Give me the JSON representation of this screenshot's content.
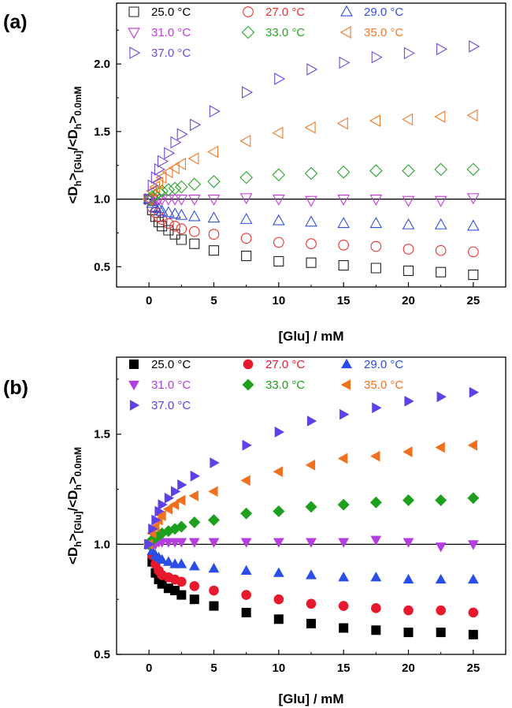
{
  "chart_data": [
    {
      "panel_label": "(a)",
      "type": "scatter",
      "marker_fill": "open",
      "xlabel": "[Glu]  /  mM",
      "ylabel": {
        "main": "<D",
        "sub1": "h",
        "mid": ">",
        "sub2": "[Glu]",
        "sep": "/<D",
        "sub3": "h",
        "end": ">",
        "sub4": "0.0mM"
      },
      "xlim": [
        -2.5,
        27.5
      ],
      "ylim": [
        0.35,
        2.45
      ],
      "xticks": [
        0,
        5,
        10,
        15,
        20,
        25
      ],
      "yticks": [
        0.5,
        1.0,
        1.5,
        2.0
      ],
      "reference_line": 1.0,
      "legend_position": "top",
      "x": [
        0,
        0.25,
        0.5,
        0.75,
        1.0,
        1.5,
        2.0,
        2.5,
        3.5,
        5.0,
        7.5,
        10.0,
        12.5,
        15.0,
        17.5,
        20.0,
        22.5,
        25.0
      ],
      "series": [
        {
          "name": "25.0 °C",
          "marker": "square",
          "color": "#222222",
          "values": [
            1.0,
            0.92,
            0.87,
            0.83,
            0.8,
            0.77,
            0.74,
            0.7,
            0.67,
            0.62,
            0.58,
            0.54,
            0.53,
            0.51,
            0.49,
            0.47,
            0.46,
            0.44
          ]
        },
        {
          "name": "27.0 °C",
          "marker": "circle",
          "color": "#e8322f",
          "values": [
            1.0,
            0.94,
            0.9,
            0.87,
            0.85,
            0.82,
            0.8,
            0.78,
            0.76,
            0.74,
            0.71,
            0.68,
            0.67,
            0.66,
            0.65,
            0.63,
            0.62,
            0.61
          ]
        },
        {
          "name": "29.0 °C",
          "marker": "triangle-up",
          "color": "#3350e0",
          "values": [
            1.0,
            0.97,
            0.94,
            0.93,
            0.91,
            0.9,
            0.89,
            0.88,
            0.87,
            0.86,
            0.85,
            0.84,
            0.83,
            0.82,
            0.82,
            0.81,
            0.81,
            0.8
          ]
        },
        {
          "name": "31.0 °C",
          "marker": "triangle-down",
          "color": "#c03ad8",
          "values": [
            1.0,
            1.0,
            1.0,
            1.0,
            1.0,
            1.0,
            1.0,
            1.0,
            1.0,
            1.0,
            1.01,
            1.0,
            0.99,
            1.0,
            1.0,
            0.99,
            0.99,
            1.01
          ]
        },
        {
          "name": "33.0 °C",
          "marker": "diamond",
          "color": "#2aa52a",
          "values": [
            1.0,
            1.02,
            1.03,
            1.05,
            1.06,
            1.07,
            1.08,
            1.09,
            1.11,
            1.13,
            1.16,
            1.18,
            1.19,
            1.2,
            1.21,
            1.21,
            1.22,
            1.22
          ]
        },
        {
          "name": "35.0 °C",
          "marker": "triangle-left",
          "color": "#f07a2a",
          "values": [
            1.0,
            1.06,
            1.09,
            1.12,
            1.16,
            1.2,
            1.23,
            1.26,
            1.3,
            1.35,
            1.43,
            1.49,
            1.53,
            1.56,
            1.58,
            1.59,
            1.61,
            1.62
          ]
        },
        {
          "name": "37.0 °C",
          "marker": "triangle-right",
          "color": "#7048d8",
          "values": [
            1.0,
            1.1,
            1.16,
            1.22,
            1.28,
            1.34,
            1.42,
            1.48,
            1.55,
            1.65,
            1.79,
            1.89,
            1.96,
            2.01,
            2.05,
            2.08,
            2.11,
            2.13
          ]
        }
      ]
    },
    {
      "panel_label": "(b)",
      "type": "scatter",
      "marker_fill": "filled",
      "xlabel": "[Glu]  /  mM",
      "ylabel": {
        "main": "<D",
        "sub1": "h",
        "mid": ">",
        "sub2": "[Glu]",
        "sep": "/<D",
        "sub3": "h",
        "end": ">",
        "sub4": "0.0mM"
      },
      "xlim": [
        -2.5,
        27.5
      ],
      "ylim": [
        0.5,
        1.85
      ],
      "xticks": [
        0,
        5,
        10,
        15,
        20,
        25
      ],
      "yticks": [
        0.5,
        1.0,
        1.5
      ],
      "reference_line": 1.0,
      "legend_position": "top",
      "x": [
        0,
        0.25,
        0.5,
        0.75,
        1.0,
        1.5,
        2.0,
        2.5,
        3.5,
        5.0,
        7.5,
        10.0,
        12.5,
        15.0,
        17.5,
        20.0,
        22.5,
        25.0
      ],
      "series": [
        {
          "name": "25.0 °C",
          "marker": "square",
          "color": "#000000",
          "values": [
            1.0,
            0.92,
            0.87,
            0.84,
            0.82,
            0.8,
            0.79,
            0.77,
            0.75,
            0.72,
            0.69,
            0.66,
            0.64,
            0.62,
            0.61,
            0.6,
            0.6,
            0.59
          ]
        },
        {
          "name": "27.0 °C",
          "marker": "circle",
          "color": "#e8192c",
          "values": [
            1.0,
            0.95,
            0.91,
            0.88,
            0.86,
            0.85,
            0.84,
            0.83,
            0.81,
            0.79,
            0.77,
            0.75,
            0.73,
            0.72,
            0.71,
            0.7,
            0.7,
            0.69
          ]
        },
        {
          "name": "29.0 °C",
          "marker": "triangle-up",
          "color": "#2a4ee8",
          "values": [
            1.0,
            0.97,
            0.95,
            0.94,
            0.93,
            0.92,
            0.91,
            0.91,
            0.9,
            0.89,
            0.88,
            0.87,
            0.86,
            0.85,
            0.85,
            0.84,
            0.84,
            0.84
          ]
        },
        {
          "name": "31.0 °C",
          "marker": "triangle-down",
          "color": "#b53ee0",
          "values": [
            1.0,
            1.0,
            1.0,
            1.01,
            1.01,
            1.01,
            1.01,
            1.01,
            1.01,
            1.01,
            1.01,
            1.01,
            1.01,
            1.01,
            1.02,
            1.01,
            0.99,
            1.0
          ]
        },
        {
          "name": "33.0 °C",
          "marker": "diamond",
          "color": "#1ea01e",
          "values": [
            1.0,
            1.02,
            1.03,
            1.04,
            1.05,
            1.06,
            1.07,
            1.08,
            1.1,
            1.11,
            1.14,
            1.15,
            1.17,
            1.18,
            1.19,
            1.2,
            1.2,
            1.21
          ]
        },
        {
          "name": "35.0 °C",
          "marker": "triangle-left",
          "color": "#f0701e",
          "values": [
            1.0,
            1.05,
            1.08,
            1.11,
            1.13,
            1.16,
            1.18,
            1.2,
            1.22,
            1.24,
            1.29,
            1.33,
            1.36,
            1.39,
            1.4,
            1.42,
            1.44,
            1.45
          ]
        },
        {
          "name": "37.0 °C",
          "marker": "triangle-right",
          "color": "#6040e8",
          "values": [
            1.0,
            1.07,
            1.11,
            1.15,
            1.18,
            1.21,
            1.24,
            1.27,
            1.31,
            1.37,
            1.45,
            1.51,
            1.56,
            1.59,
            1.62,
            1.65,
            1.67,
            1.69
          ]
        }
      ]
    }
  ]
}
